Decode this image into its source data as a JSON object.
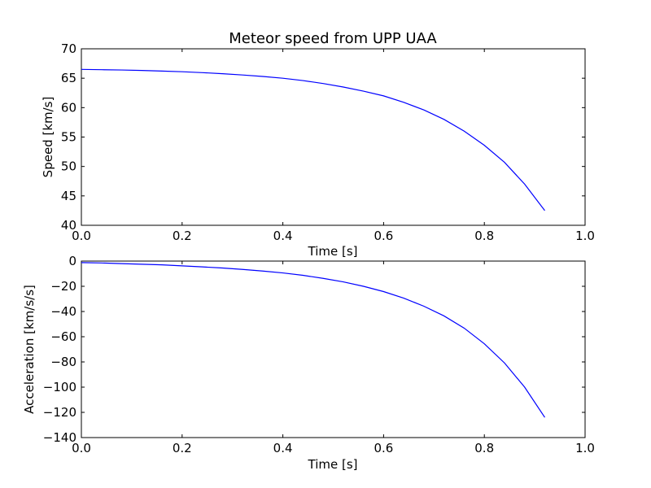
{
  "chart_data": [
    {
      "type": "line",
      "title": "Meteor speed from  UPP UAA",
      "xlabel": "Time [s]",
      "ylabel": "Speed [km/s]",
      "xlim": [
        0,
        1
      ],
      "ylim": [
        40,
        70
      ],
      "xticks": [
        0,
        0.2,
        0.4,
        0.6,
        0.8,
        1
      ],
      "xtick_labels": [
        "0.0",
        "0.2",
        "0.4",
        "0.6",
        "0.8",
        "1.0"
      ],
      "yticks": [
        40,
        45,
        50,
        55,
        60,
        65,
        70
      ],
      "ytick_labels": [
        "40",
        "45",
        "50",
        "55",
        "60",
        "65",
        "70"
      ],
      "grid": false,
      "series": [
        {
          "color": "#0000ff",
          "x": [
            0,
            0.04,
            0.08,
            0.12,
            0.16,
            0.2,
            0.24,
            0.28,
            0.32,
            0.36,
            0.4,
            0.44,
            0.48,
            0.52,
            0.56,
            0.6,
            0.64,
            0.68,
            0.72,
            0.76,
            0.8,
            0.84,
            0.88,
            0.92
          ],
          "y": [
            66.5,
            66.45,
            66.4,
            66.32,
            66.22,
            66.1,
            65.95,
            65.77,
            65.55,
            65.3,
            65.0,
            64.6,
            64.1,
            63.5,
            62.8,
            62.0,
            60.9,
            59.6,
            58.0,
            56.0,
            53.6,
            50.7,
            47.0,
            42.5
          ]
        }
      ]
    },
    {
      "type": "line",
      "title": "",
      "xlabel": "Time [s]",
      "ylabel": "Acceleration [km/s/s]",
      "xlim": [
        0,
        1
      ],
      "ylim": [
        -140,
        0
      ],
      "xticks": [
        0,
        0.2,
        0.4,
        0.6,
        0.8,
        1
      ],
      "xtick_labels": [
        "0.0",
        "0.2",
        "0.4",
        "0.6",
        "0.8",
        "1.0"
      ],
      "yticks": [
        -140,
        -120,
        -100,
        -80,
        -60,
        -40,
        -20,
        0
      ],
      "ytick_labels": [
        "−140",
        "−120",
        "−100",
        "−80",
        "−60",
        "−40",
        "−20",
        "0"
      ],
      "grid": false,
      "series": [
        {
          "color": "#0000ff",
          "x": [
            0,
            0.04,
            0.08,
            0.12,
            0.16,
            0.2,
            0.24,
            0.28,
            0.32,
            0.36,
            0.4,
            0.44,
            0.48,
            0.52,
            0.56,
            0.6,
            0.64,
            0.68,
            0.72,
            0.76,
            0.8,
            0.84,
            0.88,
            0.92
          ],
          "y": [
            -1.2,
            -1.5,
            -2.0,
            -2.5,
            -3.0,
            -3.8,
            -4.6,
            -5.5,
            -6.6,
            -7.9,
            -9.4,
            -11.3,
            -13.7,
            -16.5,
            -20.0,
            -24.2,
            -29.4,
            -35.8,
            -43.5,
            -53.2,
            -65.6,
            -80.8,
            -100.0,
            -124.0
          ]
        }
      ]
    }
  ]
}
